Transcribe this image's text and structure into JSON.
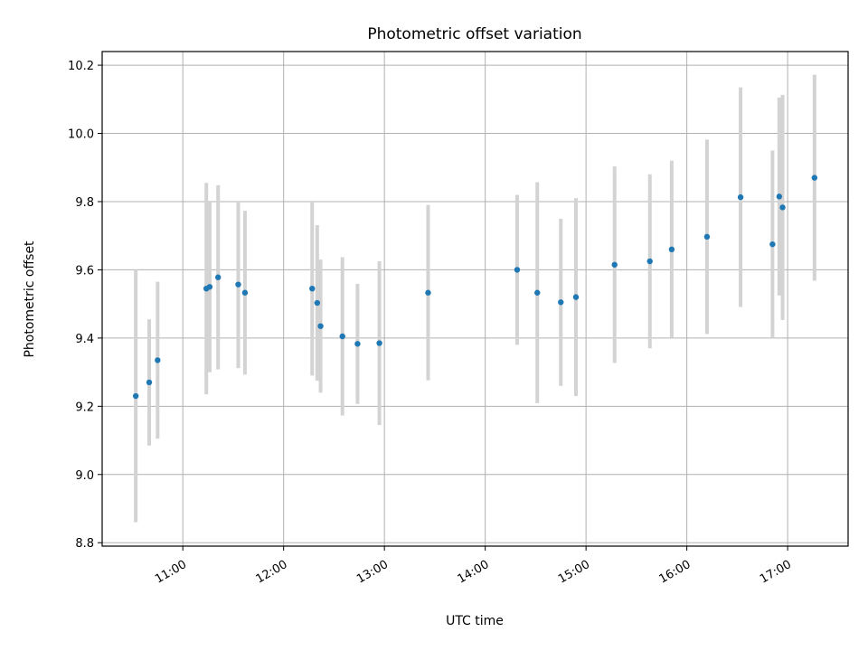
{
  "chart_data": {
    "type": "scatter",
    "title": "Photometric offset variation",
    "xlabel": "UTC time",
    "ylabel": "Photometric offset",
    "x_ticks": [
      "11:00",
      "12:00",
      "13:00",
      "14:00",
      "15:00",
      "16:00",
      "17:00"
    ],
    "y_ticks": [
      "8.8",
      "9.0",
      "9.2",
      "9.4",
      "9.6",
      "9.8",
      "10.0",
      "10.2"
    ],
    "xlim": [
      "10:12",
      "17:36"
    ],
    "ylim": [
      8.79,
      10.24
    ],
    "grid": true,
    "marker_color": "#1f77b4",
    "errorbar_color": "#d3d3d3",
    "points": [
      {
        "x": "10:32",
        "y": 9.23,
        "yerr": 0.37
      },
      {
        "x": "10:40",
        "y": 9.27,
        "yerr": 0.185
      },
      {
        "x": "10:45",
        "y": 9.335,
        "yerr": 0.23
      },
      {
        "x": "11:14",
        "y": 9.545,
        "yerr": 0.31
      },
      {
        "x": "11:16",
        "y": 9.55,
        "yerr": 0.25
      },
      {
        "x": "11:21",
        "y": 9.578,
        "yerr": 0.27
      },
      {
        "x": "11:33",
        "y": 9.557,
        "yerr": 0.245
      },
      {
        "x": "11:37",
        "y": 9.533,
        "yerr": 0.24
      },
      {
        "x": "12:17",
        "y": 9.545,
        "yerr": 0.255
      },
      {
        "x": "12:20",
        "y": 9.503,
        "yerr": 0.228
      },
      {
        "x": "12:22",
        "y": 9.435,
        "yerr": 0.195
      },
      {
        "x": "12:35",
        "y": 9.405,
        "yerr": 0.232
      },
      {
        "x": "12:44",
        "y": 9.383,
        "yerr": 0.176
      },
      {
        "x": "12:57",
        "y": 9.385,
        "yerr": 0.24
      },
      {
        "x": "13:26",
        "y": 9.533,
        "yerr": 0.257
      },
      {
        "x": "14:19",
        "y": 9.6,
        "yerr": 0.22
      },
      {
        "x": "14:31",
        "y": 9.533,
        "yerr": 0.324
      },
      {
        "x": "14:45",
        "y": 9.505,
        "yerr": 0.245
      },
      {
        "x": "14:54",
        "y": 9.52,
        "yerr": 0.29
      },
      {
        "x": "15:17",
        "y": 9.615,
        "yerr": 0.288
      },
      {
        "x": "15:38",
        "y": 9.625,
        "yerr": 0.255
      },
      {
        "x": "15:51",
        "y": 9.66,
        "yerr": 0.26
      },
      {
        "x": "16:12",
        "y": 9.697,
        "yerr": 0.285
      },
      {
        "x": "16:32",
        "y": 9.813,
        "yerr": 0.322
      },
      {
        "x": "16:51",
        "y": 9.675,
        "yerr": 0.275
      },
      {
        "x": "16:55",
        "y": 9.815,
        "yerr": 0.29
      },
      {
        "x": "16:57",
        "y": 9.783,
        "yerr": 0.33
      },
      {
        "x": "17:16",
        "y": 9.87,
        "yerr": 0.302
      }
    ]
  }
}
